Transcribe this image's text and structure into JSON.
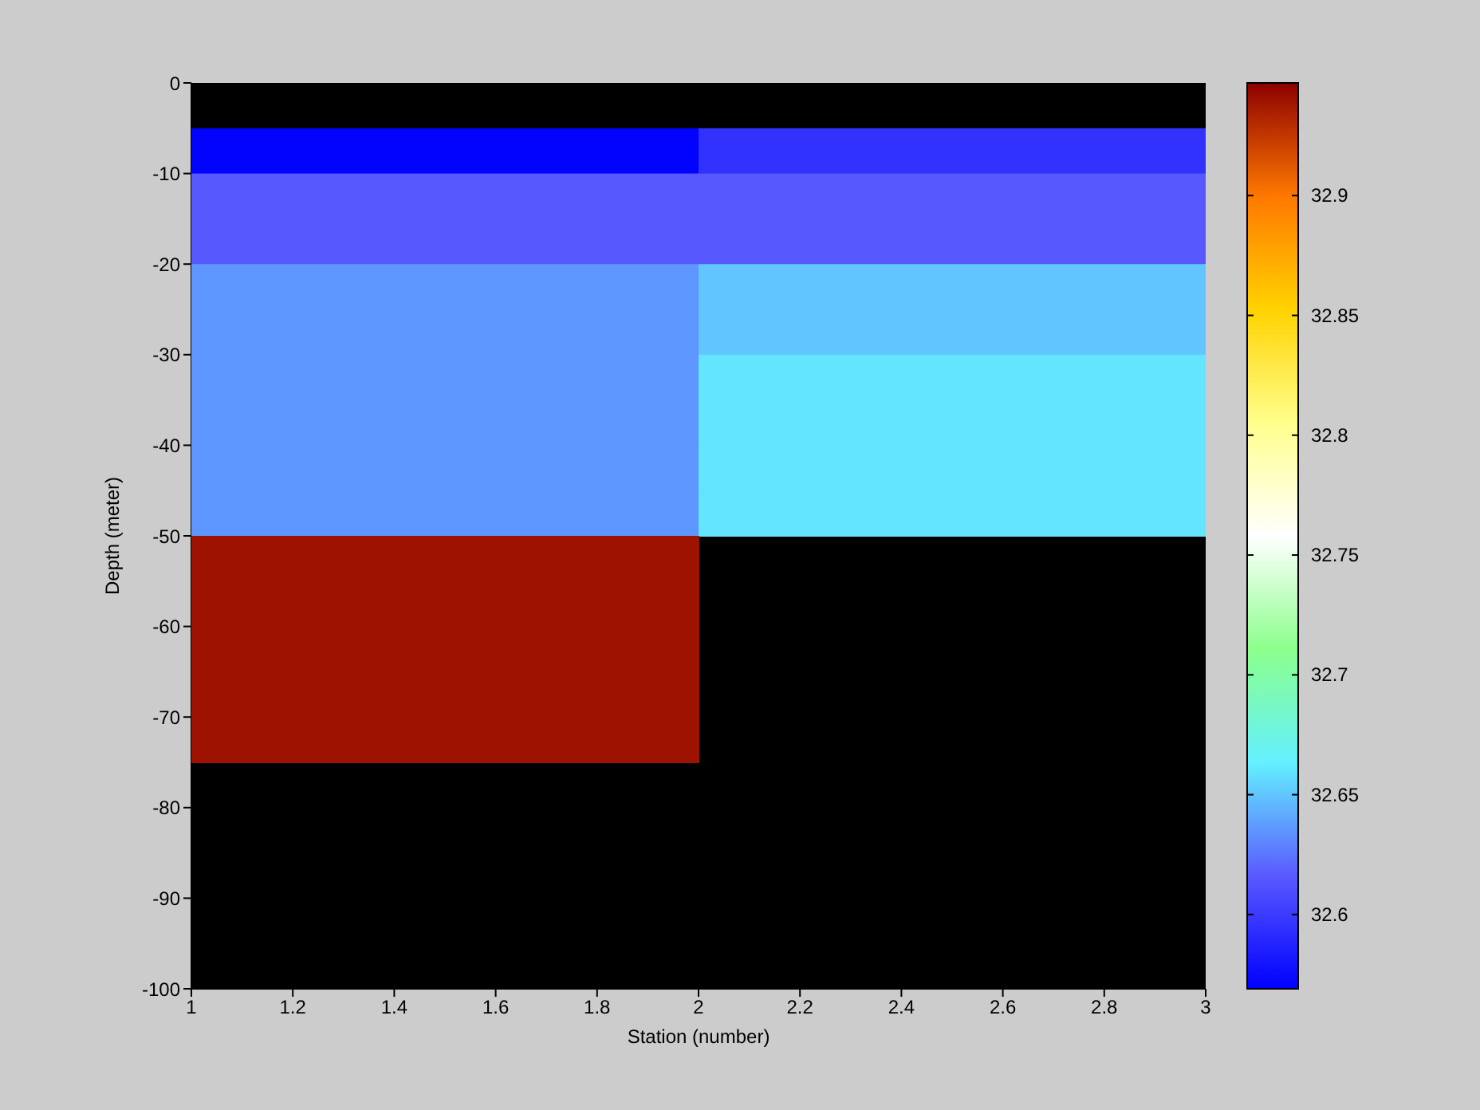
{
  "chart_data": {
    "type": "heatmap",
    "xlabel": "Station (number)",
    "ylabel": "Depth (meter)",
    "x": [
      1.5,
      2.5
    ],
    "y": [
      -7.5,
      -12.5,
      -17.5,
      -22.5,
      -27.5,
      -32.5,
      -37.5,
      -42.5,
      -47.5,
      -52.5,
      -57.5,
      -62.5,
      -67.5,
      -72.5
    ],
    "cells": [
      [
        32.57,
        32.595
      ],
      [
        32.615,
        32.615
      ],
      [
        32.615,
        32.615
      ],
      [
        32.635,
        32.65
      ],
      [
        32.635,
        32.65
      ],
      [
        32.635,
        32.66
      ],
      [
        32.635,
        32.66
      ],
      [
        32.635,
        32.66
      ],
      [
        32.635,
        32.66
      ],
      [
        32.94,
        null
      ],
      [
        32.94,
        null
      ],
      [
        32.94,
        null
      ],
      [
        32.94,
        null
      ],
      [
        32.94,
        null
      ]
    ],
    "colors": [
      "#0000ff",
      "#5a5aff",
      "#64f0ff",
      "#8cff8c",
      "#ffffff",
      "#ffff8c",
      "#ffd200",
      "#ff7800",
      "#8c0000"
    ],
    "clim": [
      32.569,
      32.947
    ],
    "cticks": [
      32.6,
      32.65,
      32.7,
      32.75,
      32.8,
      32.85,
      32.9
    ],
    "xlim": [
      1,
      3
    ],
    "xticks": [
      1,
      1.2,
      1.4,
      1.6,
      1.8,
      2,
      2.2,
      2.4,
      2.6,
      2.8,
      3
    ],
    "ylim": [
      -100,
      0
    ],
    "yticks": [
      -100,
      -90,
      -80,
      -70,
      -60,
      -50,
      -40,
      -30,
      -20,
      -10,
      0
    ],
    "grid": false
  }
}
